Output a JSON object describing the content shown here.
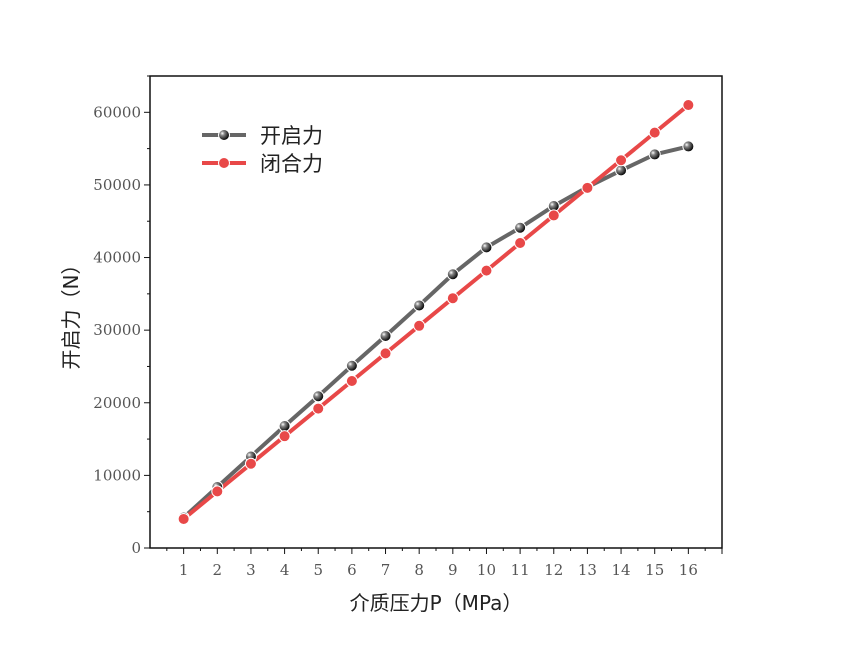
{
  "chart_data": {
    "type": "line",
    "title": "",
    "xlabel": "介质压力P（MPa）",
    "ylabel": "开启力（N）",
    "x": [
      1,
      2,
      3,
      4,
      5,
      6,
      7,
      8,
      9,
      10,
      11,
      12,
      13,
      14,
      15,
      16
    ],
    "xlim": [
      0,
      17
    ],
    "ylim": [
      0,
      65000
    ],
    "yticks": [
      "0",
      "10000",
      "20000",
      "30000",
      "40000",
      "50000",
      "60000"
    ],
    "xticks": [
      "1",
      "2",
      "3",
      "4",
      "5",
      "6",
      "7",
      "8",
      "9",
      "10",
      "11",
      "12",
      "13",
      "14",
      "15",
      "16"
    ],
    "grid": false,
    "legend_position": "top-left",
    "series": [
      {
        "name": "开启力",
        "color": "#666666",
        "marker": "black-sphere",
        "values": [
          4200,
          8400,
          12600,
          16800,
          20900,
          25100,
          29200,
          33400,
          37700,
          41400,
          44100,
          47100,
          49700,
          52000,
          54200,
          55300
        ]
      },
      {
        "name": "闭合力",
        "color": "#e84848",
        "marker": "red-dot",
        "values": [
          4000,
          7800,
          11600,
          15400,
          19200,
          23000,
          26800,
          30600,
          34400,
          38200,
          42000,
          45800,
          49600,
          53400,
          57200,
          61000
        ]
      }
    ]
  }
}
